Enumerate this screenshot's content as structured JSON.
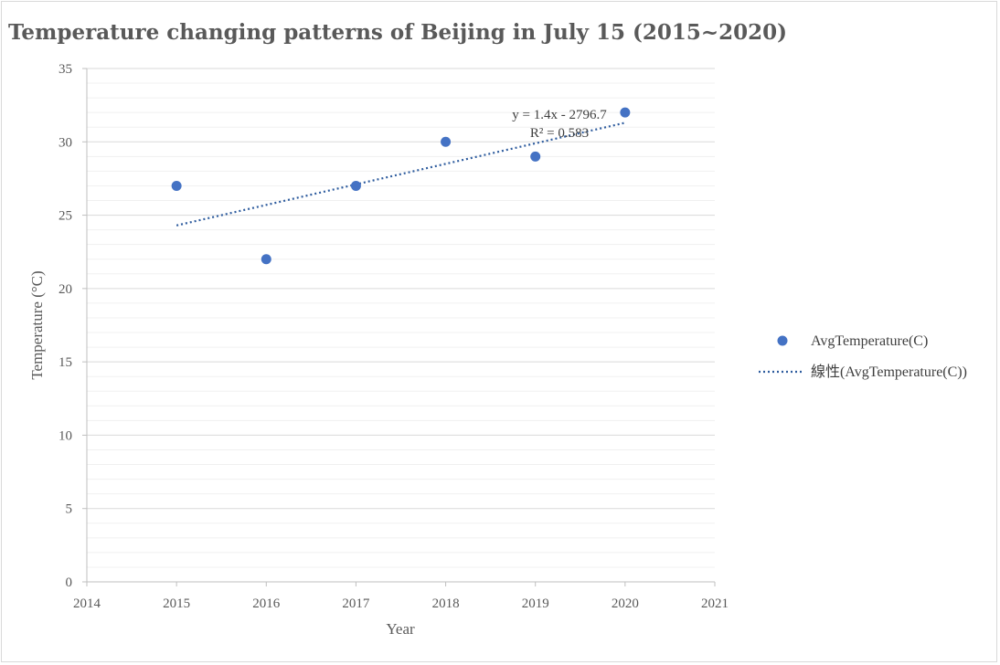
{
  "chart_data": {
    "type": "scatter",
    "title": "Temperature changing patterns of Beijing in July 15 (2015~2020)",
    "xlabel": "Year",
    "ylabel": "Temperature (°C)",
    "xlim": [
      2014,
      2021
    ],
    "ylim": [
      0,
      35
    ],
    "x_ticks": [
      2014,
      2015,
      2016,
      2017,
      2018,
      2019,
      2020,
      2021
    ],
    "y_ticks": [
      0,
      5,
      10,
      15,
      20,
      25,
      30,
      35
    ],
    "y_minor_step": 1,
    "grid": true,
    "legend_position": "right",
    "series": [
      {
        "name": "AvgTemperature(C)",
        "x": [
          2015,
          2016,
          2017,
          2018,
          2019,
          2020
        ],
        "y": [
          27,
          22,
          27,
          30,
          29,
          32
        ],
        "color": "#4472c4"
      }
    ],
    "trendline": {
      "name": "線性(AvgTemperature(C))",
      "type": "linear",
      "slope": 1.4,
      "intercept": -2796.7,
      "x_range": [
        2015,
        2020
      ],
      "equation_label": "y = 1.4x - 2796.7",
      "r2_label": "R² = 0.583",
      "color": "#2e5c9e"
    }
  }
}
